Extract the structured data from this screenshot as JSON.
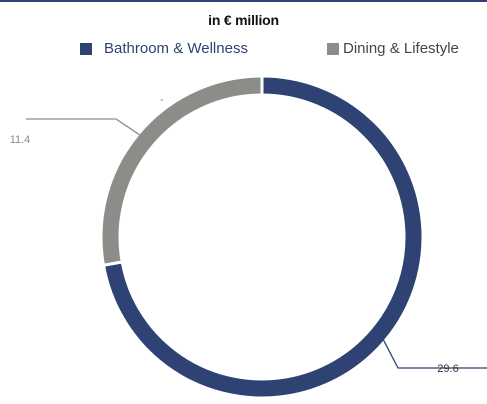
{
  "chart_data": {
    "type": "pie",
    "title": "in € million",
    "categories": [
      "Bathroom & Wellness",
      "Dining & Lifestyle"
    ],
    "values": [
      29.6,
      11.4
    ],
    "data_labels": [
      "29.6",
      "11.4"
    ],
    "legend_position": "top",
    "donut": true
  },
  "colors": {
    "bathroom": "#2e4374",
    "dining": "#8c8c88",
    "rule": "#2e4374"
  },
  "extra_mark": "-"
}
